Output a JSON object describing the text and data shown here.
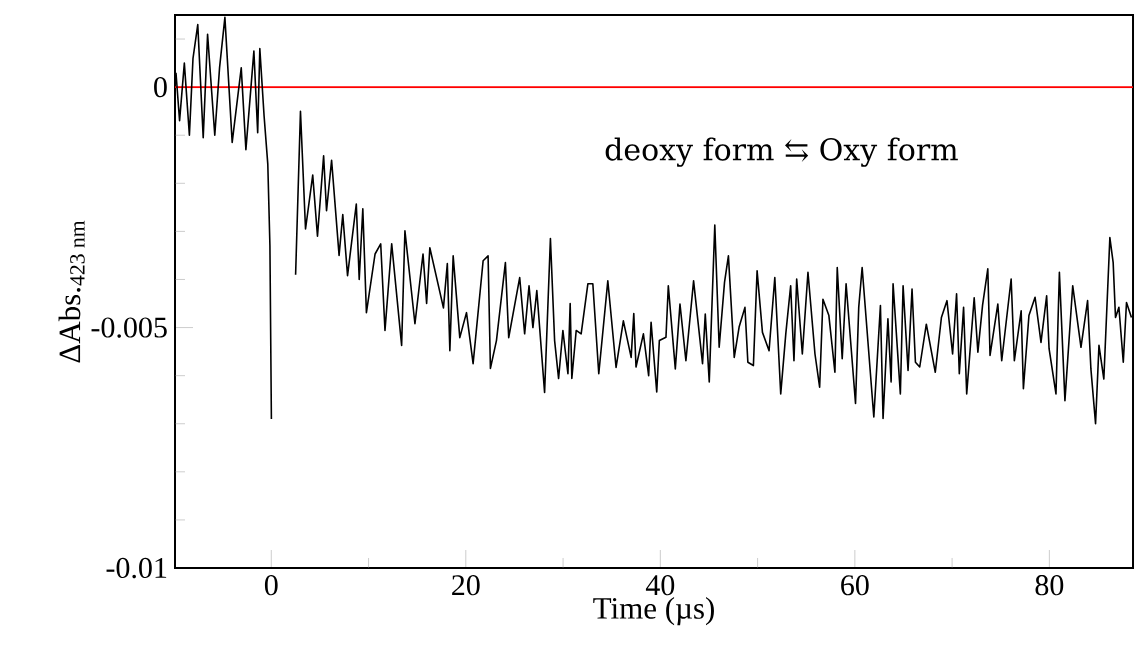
{
  "chart_data": {
    "type": "line",
    "xlabel": "Time (µs)",
    "ylabel": "ΔAbs.$_{423 nm}$",
    "annotations": [
      "deoxy form ⇆ Oxy form"
    ],
    "xlim": [
      -9.9,
      88.6
    ],
    "ylim": [
      -0.01,
      0.0015
    ],
    "xticks": [
      0,
      {
        "value": 10,
        "label": null
      },
      20,
      {
        "value": 30,
        "label": null
      },
      40,
      {
        "value": 50,
        "label": null
      },
      60,
      {
        "value": 70,
        "label": null
      },
      80
    ],
    "yticks": [
      -0.01,
      {
        "value": -0.009,
        "label": null
      },
      {
        "value": -0.008,
        "label": null
      },
      {
        "value": -0.007,
        "label": null
      },
      {
        "value": -0.006,
        "label": null
      },
      -0.005,
      {
        "value": -0.004,
        "label": null
      },
      {
        "value": -0.003,
        "label": null
      },
      {
        "value": -0.002,
        "label": null
      },
      {
        "value": -0.001,
        "label": null
      },
      0,
      {
        "value": 0.001,
        "label": null
      }
    ],
    "ref_lines": [
      {
        "axis": "y",
        "value": 0,
        "color": "#ff0000"
      }
    ],
    "line_style": "solid",
    "x": [
      -9.8,
      -9.43,
      -8.94,
      -8.42,
      -8.05,
      -7.56,
      -7.0,
      -6.55,
      -5.81,
      -5.32,
      -4.77,
      -4.02,
      -3.09,
      -2.61,
      -1.79,
      -1.4,
      -1.18,
      -0.74,
      -0.36,
      -0.14,
      0.01,
      1.0,
      1.05,
      1.6,
      1.65,
      2.5,
      3.0,
      3.52,
      4.26,
      4.75,
      5.38,
      5.68,
      6.2,
      6.97,
      7.35,
      7.84,
      8.74,
      9.04,
      9.41,
      9.78,
      10.67,
      11.25,
      11.69,
      12.38,
      13.4,
      13.74,
      14.77,
      15.6,
      15.97,
      16.3,
      17.7,
      18.1,
      18.36,
      18.7,
      19.38,
      20.07,
      20.75,
      21.78,
      22.29,
      22.53,
      23.15,
      24.07,
      24.41,
      25.54,
      26.05,
      26.5,
      26.9,
      27.3,
      28.1,
      28.7,
      29.13,
      29.54,
      29.98,
      30.5,
      30.73,
      30.9,
      31.35,
      31.86,
      32.55,
      33.06,
      33.67,
      34.6,
      35.45,
      36.2,
      37.0,
      37.27,
      37.5,
      38.26,
      38.8,
      39.05,
      39.63,
      39.9,
      40.58,
      40.82,
      41.54,
      42.02,
      42.63,
      43.42,
      44.34,
      44.62,
      45.03,
      45.6,
      46.05,
      46.6,
      47.0,
      47.6,
      48.1,
      48.7,
      49.0,
      49.57,
      49.95,
      50.5,
      51.18,
      51.77,
      52.38,
      52.9,
      53.4,
      53.74,
      54.02,
      54.6,
      55.18,
      55.9,
      56.38,
      56.72,
      57.33,
      57.95,
      58.19,
      58.7,
      59.1,
      60.07,
      60.4,
      60.75,
      61.95,
      62.63,
      62.9,
      63.4,
      63.73,
      63.93,
      64.68,
      64.96,
      65.47,
      65.88,
      66.23,
      66.67,
      67.35,
      68.27,
      68.9,
      69.47,
      70.05,
      70.46,
      70.74,
      71.18,
      71.5,
      72.27,
      72.65,
      73.13,
      73.67,
      73.9,
      74.7,
      75.1,
      76.07,
      76.4,
      77.1,
      77.33,
      77.9,
      78.53,
      79.14,
      79.72,
      79.97,
      80.68,
      81.03,
      81.6,
      82.4,
      83.25,
      83.93,
      84.27,
      84.75,
      85.1,
      85.6,
      86.22,
      86.56,
      86.8,
      87.15,
      87.6,
      87.93,
      88.44
    ],
    "series": [
      {
        "color": "#000000",
        "values": [
          0.0003,
          -0.0007,
          0.0005,
          -0.001,
          0.0006,
          0.0013,
          -0.00105,
          0.0011,
          -0.001,
          0.0004,
          0.00145,
          -0.00115,
          0.0004,
          -0.0013,
          0.00075,
          -0.00095,
          0.0008,
          -0.0006,
          -0.0016,
          -0.0033,
          -0.0069,
          null,
          null,
          null,
          null,
          -0.0039,
          -0.0005,
          -0.00295,
          -0.00183,
          -0.0031,
          -0.00143,
          -0.00257,
          -0.00152,
          -0.0035,
          -0.00265,
          -0.00392,
          -0.00243,
          -0.004,
          -0.00253,
          -0.00469,
          -0.00347,
          -0.00326,
          -0.00506,
          -0.00326,
          -0.00537,
          -0.00299,
          -0.00492,
          -0.00347,
          -0.0045,
          -0.00334,
          -0.00459,
          -0.00367,
          -0.00548,
          -0.00351,
          -0.00521,
          -0.00469,
          -0.00575,
          -0.00361,
          -0.00351,
          -0.00585,
          -0.00527,
          -0.00365,
          -0.00521,
          -0.00396,
          -0.00513,
          -0.00413,
          -0.005,
          -0.00423,
          -0.00635,
          -0.00315,
          -0.00527,
          -0.00606,
          -0.00506,
          -0.00596,
          -0.0045,
          -0.00606,
          -0.00506,
          -0.00513,
          -0.00409,
          -0.00409,
          -0.00596,
          -0.00403,
          -0.00583,
          -0.00486,
          -0.00562,
          -0.00471,
          -0.00582,
          -0.00513,
          -0.006,
          -0.00489,
          -0.00634,
          -0.00527,
          -0.0052,
          -0.00413,
          -0.00586,
          -0.00451,
          -0.00569,
          -0.00403,
          -0.00575,
          -0.00472,
          -0.00613,
          -0.00287,
          -0.00541,
          -0.00406,
          -0.00351,
          -0.00562,
          -0.00499,
          -0.00458,
          -0.00572,
          -0.00579,
          -0.00382,
          -0.0051,
          -0.00548,
          -0.00396,
          -0.00638,
          -0.00513,
          -0.00413,
          -0.00569,
          -0.00399,
          -0.00555,
          -0.00385,
          -0.00555,
          -0.00624,
          -0.00441,
          -0.00475,
          -0.00593,
          -0.00375,
          -0.00565,
          -0.00409,
          -0.00658,
          -0.00458,
          -0.00375,
          -0.00686,
          -0.00454,
          -0.00689,
          -0.00482,
          -0.00613,
          -0.00409,
          -0.00638,
          -0.00413,
          -0.00589,
          -0.0042,
          -0.00572,
          -0.00582,
          -0.00493,
          -0.00593,
          -0.00479,
          -0.00444,
          -0.00555,
          -0.0043,
          -0.00596,
          -0.00458,
          -0.00638,
          -0.00438,
          -0.00551,
          -0.00454,
          -0.00378,
          -0.00558,
          -0.00451,
          -0.00569,
          -0.00399,
          -0.00569,
          -0.00465,
          -0.00627,
          -0.00475,
          -0.00437,
          -0.00531,
          -0.00434,
          -0.00544,
          -0.00638,
          -0.00385,
          -0.00652,
          -0.00413,
          -0.00541,
          -0.00444,
          -0.00586,
          -0.007,
          -0.00537,
          -0.00607,
          -0.00313,
          -0.00365,
          -0.00479,
          -0.00458,
          -0.00572,
          -0.00448,
          -0.00479
        ]
      }
    ]
  }
}
